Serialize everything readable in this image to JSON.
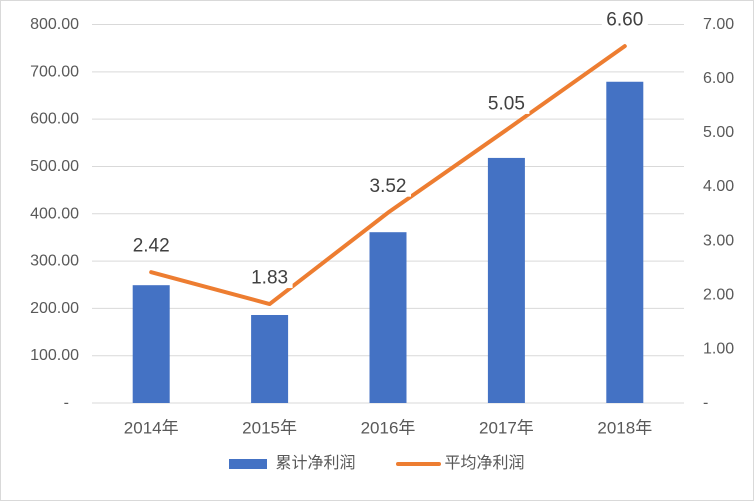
{
  "chart_data": {
    "type": "combo",
    "title": "",
    "categories": [
      "2014年",
      "2015年",
      "2016年",
      "2017年",
      "2018年"
    ],
    "series": [
      {
        "name": "累计净利润",
        "type": "bar",
        "axis": "left",
        "color": "#4472C4",
        "values": [
          249,
          186,
          361,
          518,
          679
        ]
      },
      {
        "name": "平均净利润",
        "type": "line",
        "axis": "right",
        "color": "#ED7D31",
        "values": [
          2.42,
          1.83,
          3.52,
          5.05,
          6.6
        ],
        "data_labels": [
          "2.42",
          "1.83",
          "3.52",
          "5.05",
          "6.60"
        ]
      }
    ],
    "left_axis": {
      "min": 0,
      "max": 800,
      "tick_labels": [
        "800.00",
        "700.00",
        "600.00",
        "500.00",
        "400.00",
        "300.00",
        "200.00",
        "100.00",
        "-"
      ]
    },
    "right_axis": {
      "min": 0,
      "max": 7,
      "tick_labels": [
        "7.00",
        "6.00",
        "5.00",
        "4.00",
        "3.00",
        "2.00",
        "1.00",
        "-"
      ]
    },
    "grid": true,
    "legend_position": "bottom",
    "styles": {
      "background": "#ffffff",
      "border_color": "#d9d9d9",
      "grid_color": "#d9d9d9",
      "axis_line_color": "#d9d9d9",
      "tick_text_color": "#595959",
      "category_text_color": "#595959",
      "data_label_color": "#404040"
    }
  }
}
